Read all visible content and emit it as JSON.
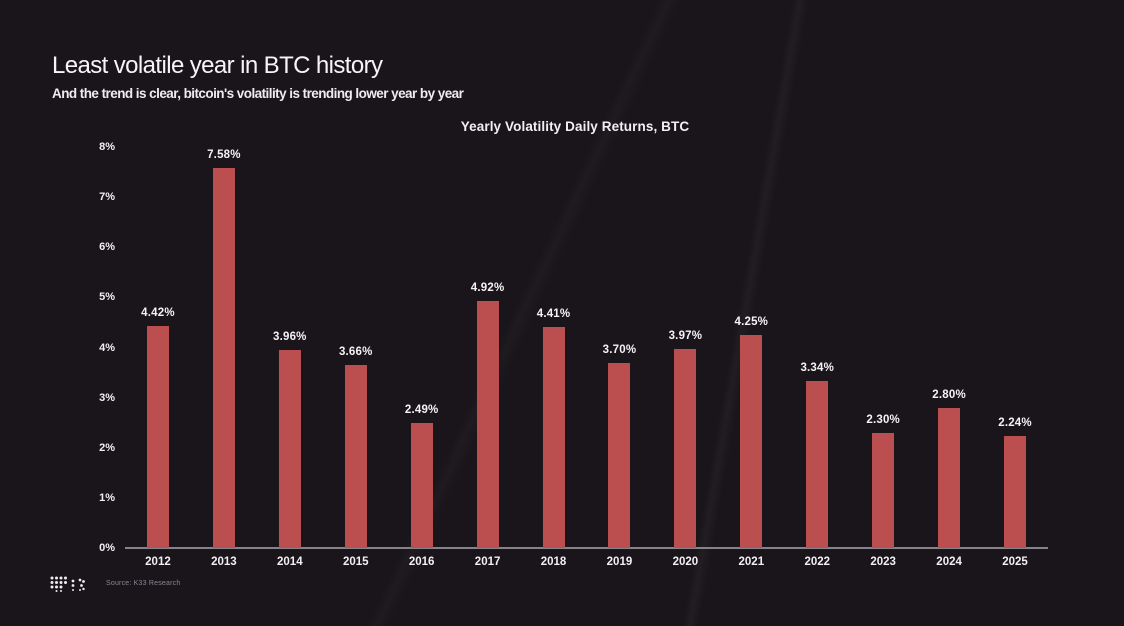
{
  "header": {
    "title": "Least volatile year in BTC history",
    "subtitle": "And the trend is clear, bitcoin's volatility is trending lower year by year"
  },
  "footer": {
    "logo_name": "k33-dot-matrix-logo",
    "source": "Source: K33 Research"
  },
  "colors": {
    "background": "#1a151a",
    "bar": "#bb4f4f",
    "text": "#f2eff2",
    "axis_line": "#85828a",
    "source_text": "#8b8690"
  },
  "chart_data": {
    "type": "bar",
    "title": "Yearly Volatility Daily Returns, BTC",
    "categories": [
      "2012",
      "2013",
      "2014",
      "2015",
      "2016",
      "2017",
      "2018",
      "2019",
      "2020",
      "2021",
      "2022",
      "2023",
      "2024",
      "2025"
    ],
    "values": [
      4.42,
      7.58,
      3.96,
      3.66,
      2.49,
      4.92,
      4.41,
      3.7,
      3.97,
      4.25,
      3.34,
      2.3,
      2.8,
      2.24
    ],
    "value_labels": [
      "4.42%",
      "7.58%",
      "3.96%",
      "3.66%",
      "2.49%",
      "4.92%",
      "4.41%",
      "3.70%",
      "3.97%",
      "4.25%",
      "3.34%",
      "2.30%",
      "2.80%",
      "2.24%"
    ],
    "xlabel": "",
    "ylabel": "",
    "ylim": [
      0,
      8
    ],
    "yticks": [
      "0%",
      "1%",
      "2%",
      "3%",
      "4%",
      "5%",
      "6%",
      "7%",
      "8%"
    ],
    "grid": false,
    "legend": "none"
  }
}
